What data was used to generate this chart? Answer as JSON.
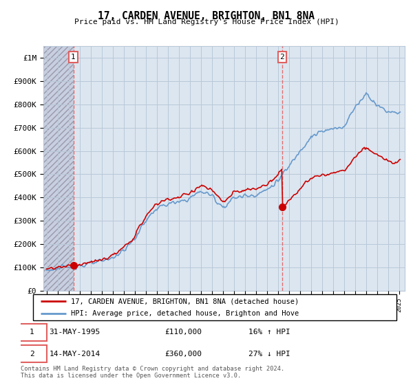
{
  "title": "17, CARDEN AVENUE, BRIGHTON, BN1 8NA",
  "subtitle": "Price paid vs. HM Land Registry's House Price Index (HPI)",
  "ylabel_ticks": [
    "£0",
    "£100K",
    "£200K",
    "£300K",
    "£400K",
    "£500K",
    "£600K",
    "£700K",
    "£800K",
    "£900K",
    "£1M"
  ],
  "ytick_values": [
    0,
    100000,
    200000,
    300000,
    400000,
    500000,
    600000,
    700000,
    800000,
    900000,
    1000000
  ],
  "ylim": [
    0,
    1050000
  ],
  "xlim_start": 1992.7,
  "xlim_end": 2025.5,
  "purchase_1": {
    "year": 1995.42,
    "price": 110000,
    "label": "1"
  },
  "purchase_2": {
    "year": 2014.37,
    "price": 360000,
    "label": "2"
  },
  "legend_line1": "17, CARDEN AVENUE, BRIGHTON, BN1 8NA (detached house)",
  "legend_line2": "HPI: Average price, detached house, Brighton and Hove",
  "footer": "Contains HM Land Registry data © Crown copyright and database right 2024.\nThis data is licensed under the Open Government Licence v3.0.",
  "hatch_color": "#c8cfe0",
  "bg_color": "#dce6f0",
  "grid_color": "#b8c8d8",
  "red_color": "#cc0000",
  "blue_color": "#6699cc",
  "dashed_red": "#e06060"
}
